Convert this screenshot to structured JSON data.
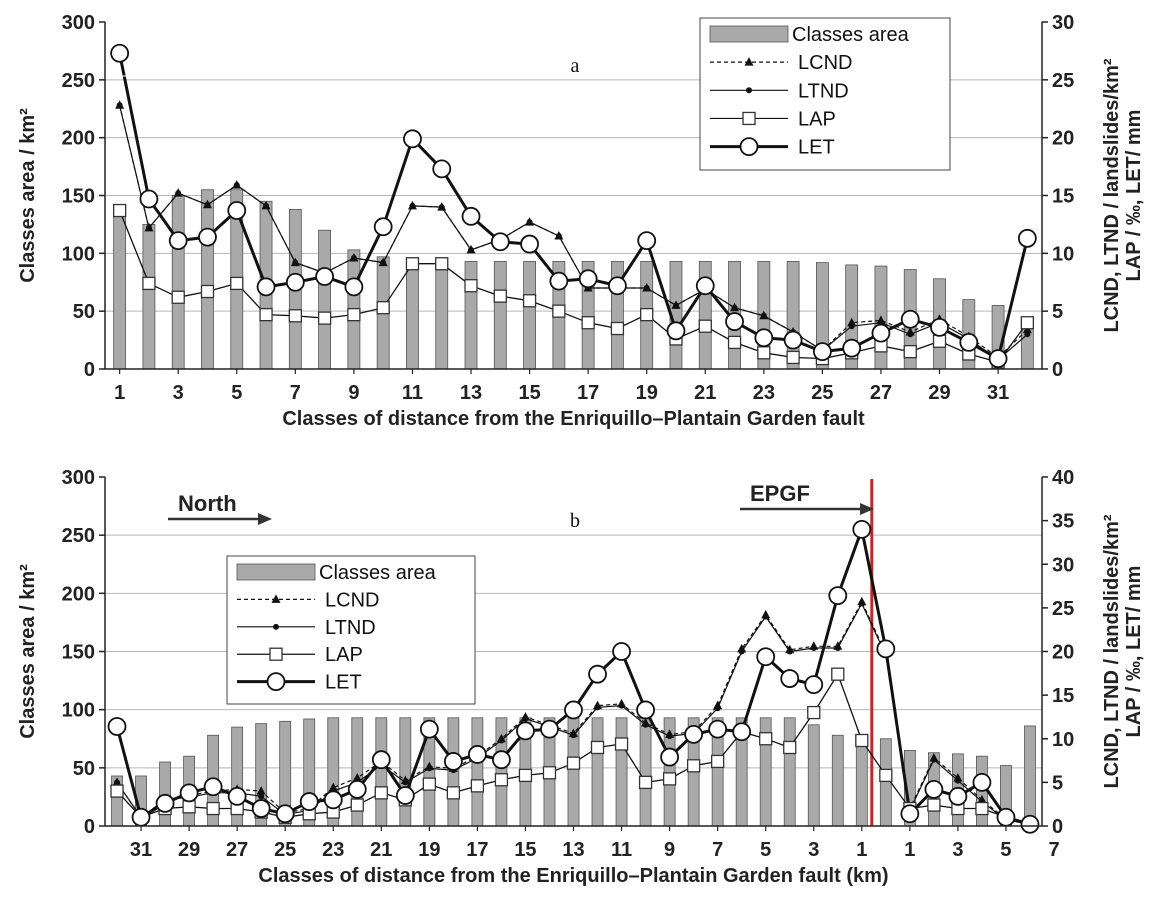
{
  "chart_data": [
    {
      "type": "bar",
      "panel_label": "a",
      "xlabel": "Classes of distance from the Enriquillo–Plantain Garden fault",
      "ylabel_left": "Classes area / km²",
      "ylabel_right": [
        "LCND, LTND / landslides/km²",
        "LAP / ‰, LET/ mm"
      ],
      "ylim_left": [
        0,
        300
      ],
      "yticks_left": [
        "0",
        "50",
        "100",
        "150",
        "200",
        "250",
        "300"
      ],
      "ylim_right": [
        0,
        30
      ],
      "yticks_right": [
        "0",
        "5",
        "10",
        "15",
        "20",
        "25",
        "30"
      ],
      "categories": [
        "1",
        "2",
        "3",
        "4",
        "5",
        "6",
        "7",
        "8",
        "9",
        "10",
        "11",
        "12",
        "13",
        "14",
        "15",
        "16",
        "17",
        "18",
        "19",
        "20",
        "21",
        "22",
        "23",
        "24",
        "25",
        "26",
        "27",
        "28",
        "29",
        "30",
        "31",
        "32"
      ],
      "x_tick_labels": [
        "1",
        "3",
        "5",
        "7",
        "9",
        "11",
        "13",
        "15",
        "17",
        "19",
        "21",
        "23",
        "25",
        "27",
        "29",
        "31"
      ],
      "legend_position": "top-right",
      "series": [
        {
          "name": "Classes area",
          "kind": "bar",
          "axis": "left",
          "values": [
            135,
            125,
            150,
            155,
            155,
            145,
            138,
            120,
            103,
            97,
            90,
            90,
            93,
            93,
            93,
            93,
            93,
            93,
            93,
            93,
            93,
            93,
            93,
            93,
            92,
            90,
            89,
            86,
            78,
            60,
            55,
            43
          ]
        },
        {
          "name": "LCND",
          "kind": "line",
          "marker": "triangle",
          "dash": true,
          "axis": "right",
          "values": [
            22.8,
            12.2,
            15.2,
            14.2,
            15.9,
            14.1,
            9.2,
            8.3,
            9.6,
            9.2,
            14.1,
            14.0,
            10.3,
            11.2,
            12.7,
            11.5,
            7.0,
            7.0,
            7.0,
            5.5,
            6.9,
            5.3,
            4.6,
            3.2,
            1.6,
            4.0,
            4.2,
            3.2,
            4.3,
            2.8,
            1.0,
            3.4
          ]
        },
        {
          "name": "LTND",
          "kind": "line",
          "marker": "dot",
          "axis": "right",
          "values": [
            22.8,
            12.2,
            15.2,
            14.2,
            15.9,
            14.1,
            9.2,
            8.3,
            9.6,
            9.2,
            14.1,
            14.0,
            10.3,
            11.2,
            12.7,
            11.5,
            7.0,
            7.0,
            7.0,
            5.5,
            6.9,
            5.3,
            4.6,
            3.2,
            1.6,
            3.7,
            4.0,
            3.0,
            4.0,
            2.6,
            0.8,
            3.0
          ]
        },
        {
          "name": "LAP",
          "kind": "line",
          "marker": "square",
          "axis": "right",
          "values": [
            13.7,
            7.4,
            6.2,
            6.7,
            7.4,
            4.7,
            4.6,
            4.4,
            4.7,
            5.3,
            9.1,
            9.1,
            7.2,
            6.3,
            5.9,
            5.0,
            4.0,
            3.5,
            4.7,
            2.6,
            3.7,
            2.3,
            1.4,
            1.0,
            0.9,
            1.4,
            2.0,
            1.5,
            2.4,
            1.3,
            0.6,
            4.0
          ]
        },
        {
          "name": "LET",
          "kind": "line",
          "marker": "circle",
          "bold": true,
          "axis": "right",
          "values": [
            27.3,
            14.7,
            11.1,
            11.4,
            13.7,
            7.1,
            7.5,
            8.0,
            7.1,
            12.3,
            19.9,
            17.3,
            13.2,
            11.0,
            10.8,
            7.6,
            7.8,
            7.2,
            11.1,
            3.3,
            7.2,
            4.1,
            2.7,
            2.5,
            1.5,
            1.8,
            3.1,
            4.3,
            3.6,
            2.3,
            0.9,
            11.3
          ]
        }
      ]
    },
    {
      "type": "bar",
      "panel_label": "b",
      "xlabel": "Classes of distance from the Enriquillo–Plantain Garden fault (km)",
      "ylabel_left": "Classes area / km²",
      "ylabel_right": [
        "LCND, LTND / landslides/km²",
        "LAP / ‰, LET/ mm"
      ],
      "ylim_left": [
        0,
        300
      ],
      "yticks_left": [
        "0",
        "50",
        "100",
        "150",
        "200",
        "250",
        "300"
      ],
      "ylim_right": [
        0,
        40
      ],
      "yticks_right": [
        "0",
        "5",
        "10",
        "15",
        "20",
        "25",
        "30",
        "35",
        "40"
      ],
      "categories": [
        "32",
        "31",
        "30",
        "29",
        "28",
        "27",
        "26",
        "25",
        "24",
        "23",
        "22",
        "21",
        "20",
        "19",
        "18",
        "17",
        "16",
        "15",
        "14",
        "13",
        "12",
        "11",
        "10",
        "9",
        "8",
        "7",
        "6",
        "5",
        "4",
        "3",
        "2",
        "1",
        "1",
        "2",
        "3",
        "4",
        "5",
        "6",
        "7"
      ],
      "x_tick_labels": [
        "31",
        "29",
        "27",
        "25",
        "23",
        "21",
        "19",
        "17",
        "15",
        "13",
        "11",
        "9",
        "7",
        "5",
        "3",
        "1",
        "1",
        "3",
        "5",
        "7"
      ],
      "annotations": [
        {
          "text": "North",
          "kind": "arrow-right",
          "position": "top-left"
        },
        {
          "text": "EPGF",
          "kind": "arrow-right",
          "position": "top"
        }
      ],
      "fault_line_after_category_index": 31,
      "fault_line_color": "#cc2222",
      "legend_position": "top-left",
      "series": [
        {
          "name": "Classes area",
          "kind": "bar",
          "axis": "left",
          "values": [
            43,
            43,
            55,
            60,
            78,
            85,
            88,
            90,
            92,
            93,
            93,
            93,
            93,
            93,
            93,
            93,
            93,
            93,
            93,
            93,
            93,
            93,
            93,
            93,
            93,
            93,
            93,
            93,
            93,
            87,
            78,
            70,
            75,
            65,
            63,
            62,
            60,
            52,
            86
          ]
        },
        {
          "name": "LCND",
          "kind": "line",
          "marker": "triangle",
          "dash": true,
          "axis": "right",
          "values": [
            5.0,
            1.0,
            3.0,
            3.5,
            4.0,
            4.2,
            4.0,
            1.5,
            2.0,
            4.4,
            5.5,
            7.4,
            5.2,
            6.8,
            6.6,
            8.0,
            10.0,
            12.5,
            11.6,
            10.6,
            13.8,
            14.0,
            11.8,
            10.5,
            10.8,
            13.8,
            20.3,
            24.2,
            20.2,
            20.6,
            20.6,
            25.7,
            19.8,
            2.0,
            7.8,
            5.5,
            3.0,
            0.8,
            0.2
          ]
        },
        {
          "name": "LTND",
          "kind": "line",
          "marker": "dot",
          "axis": "right",
          "values": [
            5.0,
            1.0,
            3.0,
            3.3,
            3.8,
            3.8,
            3.4,
            1.3,
            1.8,
            4.0,
            5.0,
            7.0,
            5.0,
            6.6,
            6.4,
            7.8,
            9.8,
            12.3,
            11.4,
            10.4,
            13.6,
            13.8,
            11.6,
            10.3,
            10.6,
            13.5,
            20.0,
            24.0,
            20.0,
            20.4,
            20.4,
            25.5,
            19.6,
            1.8,
            7.6,
            5.2,
            2.8,
            0.7,
            0.2
          ]
        },
        {
          "name": "LAP",
          "kind": "line",
          "marker": "square",
          "axis": "right",
          "values": [
            4.0,
            1.0,
            2.0,
            2.2,
            2.0,
            2.0,
            1.6,
            1.0,
            1.4,
            1.6,
            2.4,
            3.8,
            3.0,
            4.8,
            3.8,
            4.6,
            5.3,
            5.8,
            6.1,
            7.2,
            9.0,
            9.4,
            5.0,
            5.4,
            6.9,
            7.4,
            10.8,
            10.0,
            9.0,
            13.0,
            17.4,
            9.8,
            5.8,
            2.0,
            2.4,
            2.0,
            2.0,
            1.0,
            0.2
          ]
        },
        {
          "name": "LET",
          "kind": "line",
          "marker": "circle",
          "bold": true,
          "axis": "right",
          "values": [
            11.4,
            1.0,
            2.6,
            3.8,
            4.5,
            3.4,
            2.0,
            1.4,
            2.8,
            3.0,
            4.2,
            7.6,
            3.5,
            11.1,
            7.4,
            8.2,
            7.6,
            10.9,
            11.1,
            13.3,
            17.4,
            20.0,
            13.3,
            7.9,
            10.5,
            11.1,
            10.8,
            19.4,
            16.9,
            16.2,
            26.4,
            34.0,
            20.3,
            1.4,
            4.2,
            3.4,
            5.0,
            1.0,
            0.2
          ]
        }
      ]
    }
  ]
}
